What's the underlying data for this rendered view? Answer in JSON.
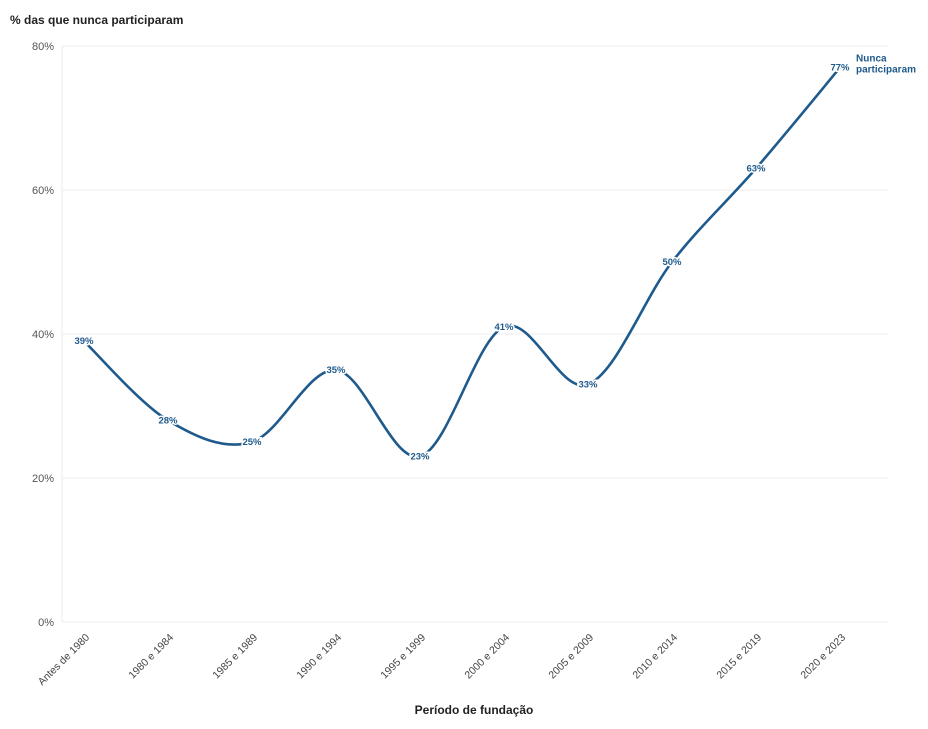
{
  "chart_data": {
    "type": "line",
    "title": "",
    "ylabel": "% das que nunca participaram",
    "xlabel": "Período de fundação",
    "categories": [
      "Antes de 1980",
      "1980 e 1984",
      "1985 e 1989",
      "1990 e 1994",
      "1995 e 1999",
      "2000 e 2004",
      "2005 e 2009",
      "2010 e 2014",
      "2015 e 2019",
      "2020 e 2023"
    ],
    "series": [
      {
        "name": "Nunca participaram",
        "values": [
          39,
          28,
          25,
          35,
          23,
          41,
          33,
          50,
          63,
          77
        ],
        "labels": [
          "39%",
          "28%",
          "25%",
          "35%",
          "23%",
          "41%",
          "33%",
          "50%",
          "63%",
          "77%"
        ]
      }
    ],
    "yticks": [
      0,
      20,
      40,
      60,
      80
    ],
    "ytick_labels": [
      "0%",
      "20%",
      "40%",
      "60%",
      "80%"
    ],
    "ylim": [
      0,
      80
    ],
    "grid": true,
    "line_color": "#1f5a8c",
    "series_label_lines": [
      "Nunca",
      "participaram"
    ]
  }
}
